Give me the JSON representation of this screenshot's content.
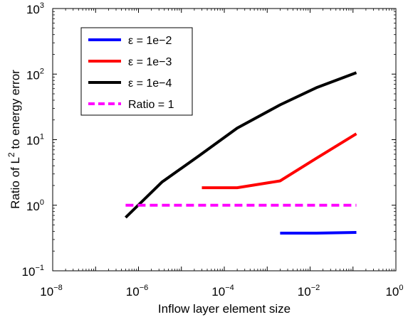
{
  "chart_data": {
    "type": "line",
    "xlabel": "Inflow layer element size",
    "ylabel": "Ratio of L^2 to energy error",
    "ylabel_parts": {
      "before": "Ratio of L",
      "sup": "2",
      "after": " to energy error"
    },
    "x_scale": "log",
    "y_scale": "log",
    "xlim": [
      1e-08,
      1
    ],
    "ylim": [
      0.1,
      1000
    ],
    "x_ticks": [
      {
        "value": 1e-08,
        "base": "10",
        "exp": "−8"
      },
      {
        "value": 1e-06,
        "base": "10",
        "exp": "−6"
      },
      {
        "value": 0.0001,
        "base": "10",
        "exp": "−4"
      },
      {
        "value": 0.01,
        "base": "10",
        "exp": "−2"
      },
      {
        "value": 1,
        "base": "10",
        "exp": "0"
      }
    ],
    "y_ticks": [
      {
        "value": 0.1,
        "base": "10",
        "exp": "−1"
      },
      {
        "value": 1,
        "base": "10",
        "exp": "0"
      },
      {
        "value": 10,
        "base": "10",
        "exp": "1"
      },
      {
        "value": 100,
        "base": "10",
        "exp": "2"
      },
      {
        "value": 1000,
        "base": "10",
        "exp": "3"
      }
    ],
    "grid": false,
    "legend_position": "top-left",
    "series": [
      {
        "name": "ε = 1e−2",
        "color": "#0000ff",
        "style": "solid",
        "points": [
          [
            0.002,
            0.375
          ],
          [
            0.014,
            0.375
          ],
          [
            0.12,
            0.385
          ]
        ]
      },
      {
        "name": "ε = 1e−3",
        "color": "#ff0000",
        "style": "solid",
        "points": [
          [
            3e-05,
            1.85
          ],
          [
            0.0002,
            1.85
          ],
          [
            0.002,
            2.35
          ],
          [
            0.014,
            5.2
          ],
          [
            0.12,
            12.3
          ]
        ]
      },
      {
        "name": "ε = 1e−4",
        "color": "#000000",
        "style": "solid",
        "points": [
          [
            5e-07,
            0.65
          ],
          [
            3.5e-06,
            2.25
          ],
          [
            2.5e-05,
            5.6
          ],
          [
            0.0002,
            15
          ],
          [
            0.002,
            34
          ],
          [
            0.014,
            62
          ],
          [
            0.12,
            105
          ]
        ]
      },
      {
        "name": "Ratio = 1",
        "color": "#ff00ff",
        "style": "dashed",
        "points": [
          [
            5e-07,
            1
          ],
          [
            0.12,
            1
          ]
        ]
      }
    ]
  }
}
